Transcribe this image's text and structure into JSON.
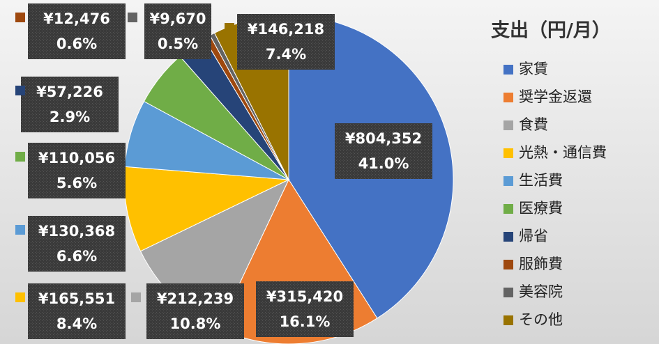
{
  "chart_data": {
    "type": "pie",
    "title": "支出（円/月）",
    "categories": [
      "家賃",
      "奨学金返還",
      "食費",
      "光熱・通信費",
      "生活費",
      "医療費",
      "帰省",
      "服飾費",
      "美容院",
      "その他"
    ],
    "values": [
      804352,
      315420,
      212239,
      165551,
      130368,
      110056,
      57226,
      12476,
      9670,
      146218
    ],
    "value_labels": [
      "¥804,352",
      "¥315,420",
      "¥212,239",
      "¥165,551",
      "¥130,368",
      "¥110,056",
      "¥57,226",
      "¥12,476",
      "¥9,670",
      "¥146,218"
    ],
    "percent_labels": [
      "41.0%",
      "16.1%",
      "10.8%",
      "8.4%",
      "6.6%",
      "5.6%",
      "2.9%",
      "0.6%",
      "0.5%",
      "7.4%"
    ],
    "colors": [
      "#4472c4",
      "#ed7d31",
      "#a5a5a5",
      "#ffc000",
      "#5b9bd5",
      "#70ad47",
      "#264478",
      "#9e480e",
      "#636363",
      "#997300"
    ],
    "legend": "right"
  }
}
